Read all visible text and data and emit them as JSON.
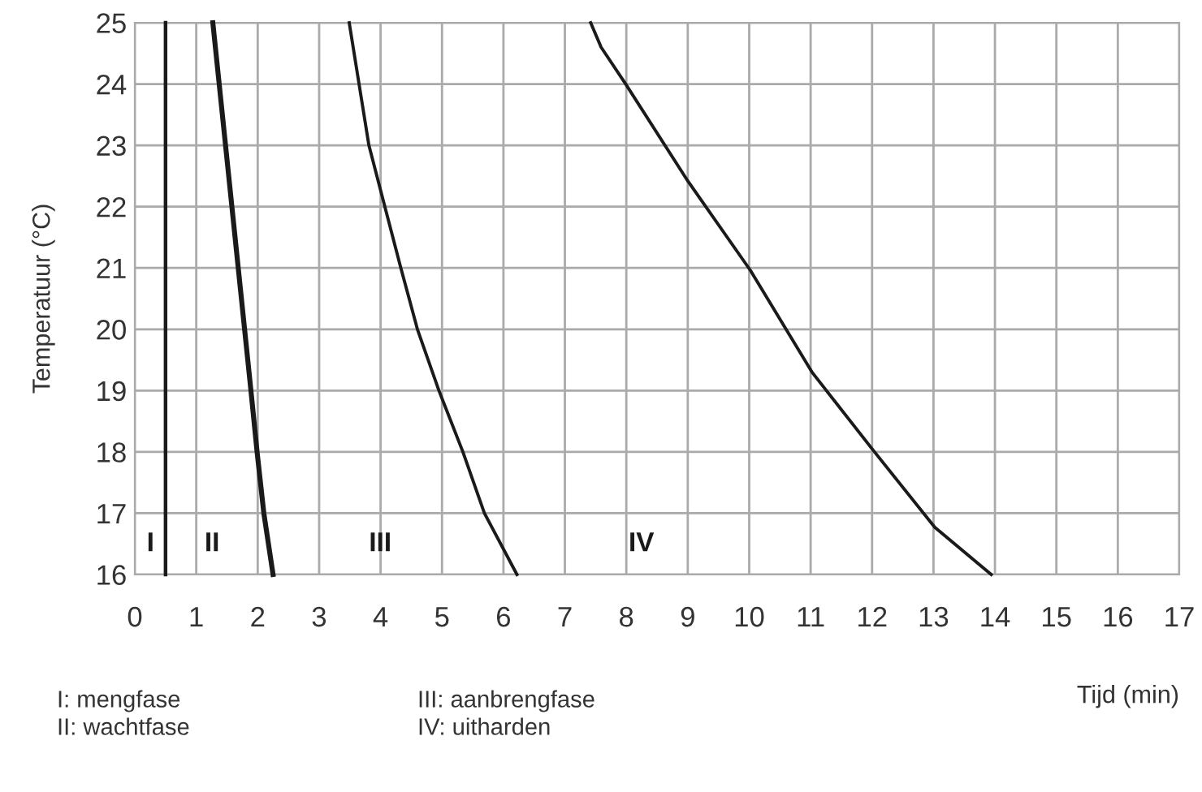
{
  "chart_data": {
    "type": "line",
    "xlabel": "Tijd (min)",
    "ylabel": "Temperatuur (°C)",
    "series": [
      {
        "color": "#1a1a1a",
        "x": [
          0.5,
          0.5
        ],
        "values": [
          25,
          16
        ]
      },
      {
        "color": "#1a1a1a",
        "x": [
          1.27,
          1.58,
          1.89,
          1.99,
          2.1,
          2.25
        ],
        "values": [
          25,
          22,
          19,
          18,
          17,
          16
        ]
      },
      {
        "color": "#1a1a1a",
        "x": [
          3.49,
          3.81,
          4.07,
          4.33,
          4.6,
          4.95,
          5.34,
          5.69,
          6.22
        ],
        "values": [
          25,
          23,
          22,
          21,
          20,
          19,
          18,
          17,
          16
        ]
      },
      {
        "color": "#1a1a1a",
        "x": [
          7.42,
          7.59,
          7.99,
          9.0,
          10.02,
          11.03,
          12.0,
          13.02,
          13.94
        ],
        "values": [
          25,
          24.6,
          24.0,
          22.42,
          20.96,
          19.29,
          18.05,
          16.77,
          16.0
        ]
      }
    ],
    "xlim": [
      0,
      17
    ],
    "ylim": [
      16,
      25
    ],
    "xticks": [
      0,
      1,
      2,
      3,
      4,
      5,
      6,
      7,
      8,
      9,
      10,
      11,
      12,
      13,
      14,
      15,
      16,
      17
    ],
    "yticks": [
      16,
      17,
      18,
      19,
      20,
      21,
      22,
      23,
      24,
      25
    ],
    "grid": true,
    "marker": "none",
    "line_style": "solid",
    "annotations": [
      "I",
      "II",
      "III",
      "IV",
      "I: mengfase",
      "II: wachtfase",
      "III: aanbrengfase",
      "IV: uitharden"
    ]
  }
}
